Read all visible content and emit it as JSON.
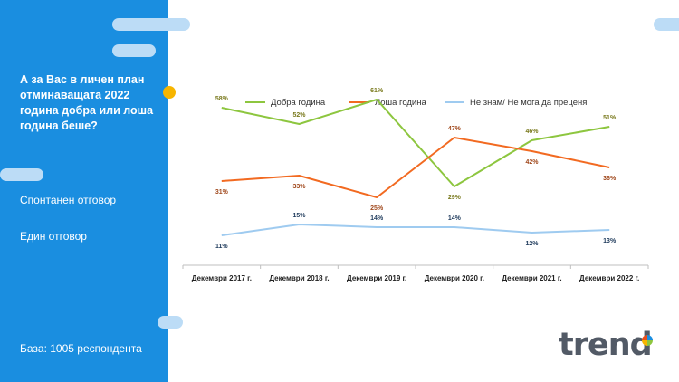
{
  "panel": {
    "question": "А за Вас в личен план отминаващата 2022 година добра или лоша година беше?",
    "note_type": "Спонтанен  отговор",
    "note_answer": "Един отговор",
    "base": "База: 1005 респондента"
  },
  "logo": {
    "text": "trend"
  },
  "colors": {
    "panel": "#1a8ee0",
    "good": "#8dc63f",
    "bad": "#f26a21",
    "dontknow": "#9fcbf0",
    "accent": "#f7b500"
  },
  "chart_data": {
    "type": "line",
    "title": "",
    "xlabel": "",
    "ylabel": "",
    "ylim": [
      0,
      80
    ],
    "categories": [
      "Декември 2017 г.",
      "Декември 2018 г.",
      "Декември 2019 г.",
      "Декември 2020 г.",
      "Декември 2021 г.",
      "Декември 2022 г."
    ],
    "legend_position": "top",
    "series": [
      {
        "name": "Добра година",
        "values": [
          58,
          52,
          61,
          29,
          46,
          51
        ],
        "labels": [
          "58%",
          "52%",
          "61%",
          "29%",
          "46%",
          "51%"
        ],
        "color": "#8dc63f",
        "label_color": "#7a7a1e",
        "label_pos": "above"
      },
      {
        "name": "Лоша година",
        "values": [
          31,
          33,
          25,
          47,
          42,
          36
        ],
        "labels": [
          "31%",
          "33%",
          "25%",
          "47%",
          "42%",
          "36%"
        ],
        "color": "#f26a21",
        "label_color": "#a0481c",
        "label_pos": "below"
      },
      {
        "name": "Не знам/ Не мога да преценя",
        "values": [
          11,
          15,
          14,
          14,
          12,
          13
        ],
        "labels": [
          "11%",
          "15%",
          "14%",
          "14%",
          "12%",
          "13%"
        ],
        "color": "#9fcbf0",
        "label_color": "#1f3b5c",
        "label_pos": "mixed"
      }
    ]
  }
}
